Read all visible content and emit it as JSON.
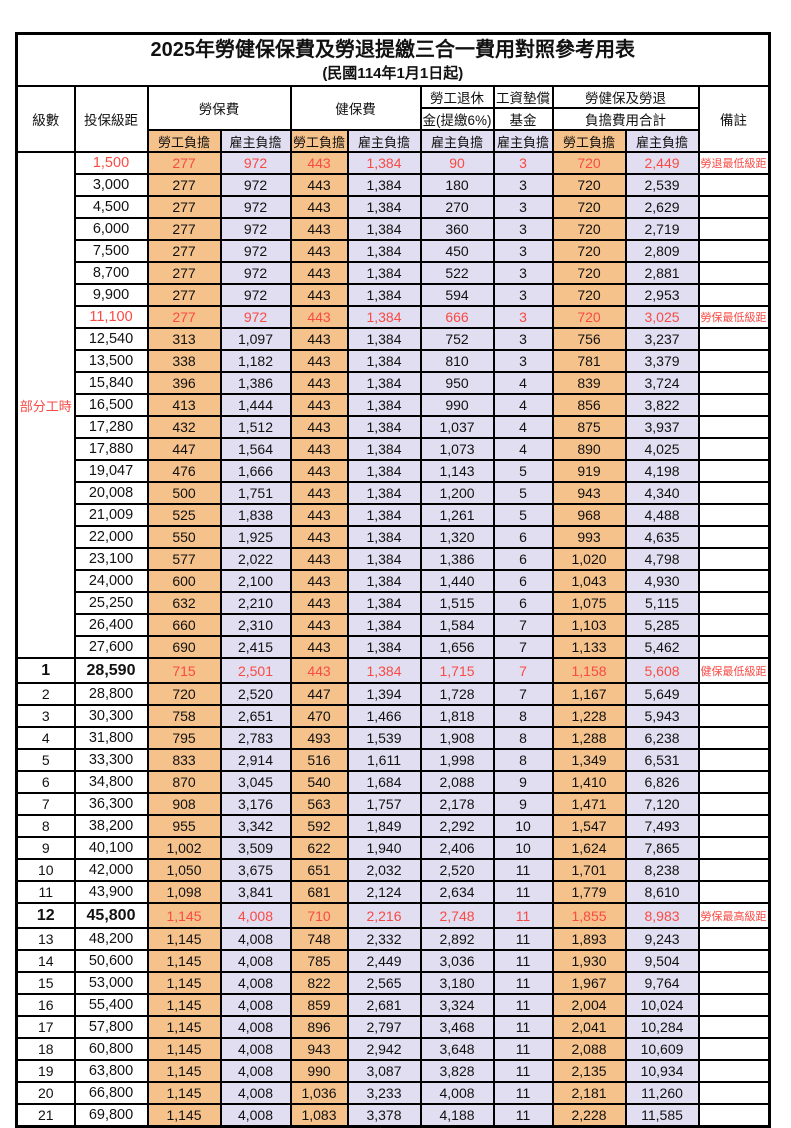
{
  "title": "2025年勞健保保費及勞退提繳三合一費用對照參考用表",
  "subtitle": "(民國114年1月1日起)",
  "columns": {
    "level": "級數",
    "bracket": "投保級距",
    "labor_ins": "勞保費",
    "health_ins": "健保費",
    "pension_l1": "勞工退休",
    "pension_l2": "金(提繳6%)",
    "wage_fund_l1": "工資墊償",
    "wage_fund_l2": "基金",
    "total_l1": "勞健保及勞退",
    "total_l2": "負擔費用合計",
    "employee": "勞工負擔",
    "employer": "雇主負擔",
    "remark": "備註"
  },
  "part_time_label": "部分工時",
  "colors": {
    "employee_bg": "#F6C28B",
    "employer_bg": "#E0DEF0",
    "highlight_red": "#F94A44",
    "grid": "#000000"
  },
  "rows": [
    {
      "level": "",
      "bracket": "1,500",
      "cells": [
        "277",
        "972",
        "443",
        "1,384",
        "90",
        "3",
        "720",
        "2,449"
      ],
      "remark": "勞退最低級距",
      "red": true,
      "bold": false
    },
    {
      "level": "",
      "bracket": "3,000",
      "cells": [
        "277",
        "972",
        "443",
        "1,384",
        "180",
        "3",
        "720",
        "2,539"
      ],
      "remark": "",
      "red": false,
      "bold": false
    },
    {
      "level": "",
      "bracket": "4,500",
      "cells": [
        "277",
        "972",
        "443",
        "1,384",
        "270",
        "3",
        "720",
        "2,629"
      ],
      "remark": "",
      "red": false,
      "bold": false
    },
    {
      "level": "",
      "bracket": "6,000",
      "cells": [
        "277",
        "972",
        "443",
        "1,384",
        "360",
        "3",
        "720",
        "2,719"
      ],
      "remark": "",
      "red": false,
      "bold": false
    },
    {
      "level": "",
      "bracket": "7,500",
      "cells": [
        "277",
        "972",
        "443",
        "1,384",
        "450",
        "3",
        "720",
        "2,809"
      ],
      "remark": "",
      "red": false,
      "bold": false
    },
    {
      "level": "",
      "bracket": "8,700",
      "cells": [
        "277",
        "972",
        "443",
        "1,384",
        "522",
        "3",
        "720",
        "2,881"
      ],
      "remark": "",
      "red": false,
      "bold": false
    },
    {
      "level": "",
      "bracket": "9,900",
      "cells": [
        "277",
        "972",
        "443",
        "1,384",
        "594",
        "3",
        "720",
        "2,953"
      ],
      "remark": "",
      "red": false,
      "bold": false
    },
    {
      "level": "",
      "bracket": "11,100",
      "cells": [
        "277",
        "972",
        "443",
        "1,384",
        "666",
        "3",
        "720",
        "3,025"
      ],
      "remark": "勞保最低級距",
      "red": true,
      "bold": false
    },
    {
      "level": "",
      "bracket": "12,540",
      "cells": [
        "313",
        "1,097",
        "443",
        "1,384",
        "752",
        "3",
        "756",
        "3,237"
      ],
      "remark": "",
      "red": false,
      "bold": false
    },
    {
      "level": "",
      "bracket": "13,500",
      "cells": [
        "338",
        "1,182",
        "443",
        "1,384",
        "810",
        "3",
        "781",
        "3,379"
      ],
      "remark": "",
      "red": false,
      "bold": false
    },
    {
      "level": "",
      "bracket": "15,840",
      "cells": [
        "396",
        "1,386",
        "443",
        "1,384",
        "950",
        "4",
        "839",
        "3,724"
      ],
      "remark": "",
      "red": false,
      "bold": false
    },
    {
      "level": "",
      "bracket": "16,500",
      "cells": [
        "413",
        "1,444",
        "443",
        "1,384",
        "990",
        "4",
        "856",
        "3,822"
      ],
      "remark": "",
      "red": false,
      "bold": false
    },
    {
      "level": "",
      "bracket": "17,280",
      "cells": [
        "432",
        "1,512",
        "443",
        "1,384",
        "1,037",
        "4",
        "875",
        "3,937"
      ],
      "remark": "",
      "red": false,
      "bold": false
    },
    {
      "level": "",
      "bracket": "17,880",
      "cells": [
        "447",
        "1,564",
        "443",
        "1,384",
        "1,073",
        "4",
        "890",
        "4,025"
      ],
      "remark": "",
      "red": false,
      "bold": false
    },
    {
      "level": "",
      "bracket": "19,047",
      "cells": [
        "476",
        "1,666",
        "443",
        "1,384",
        "1,143",
        "5",
        "919",
        "4,198"
      ],
      "remark": "",
      "red": false,
      "bold": false
    },
    {
      "level": "",
      "bracket": "20,008",
      "cells": [
        "500",
        "1,751",
        "443",
        "1,384",
        "1,200",
        "5",
        "943",
        "4,340"
      ],
      "remark": "",
      "red": false,
      "bold": false
    },
    {
      "level": "",
      "bracket": "21,009",
      "cells": [
        "525",
        "1,838",
        "443",
        "1,384",
        "1,261",
        "5",
        "968",
        "4,488"
      ],
      "remark": "",
      "red": false,
      "bold": false
    },
    {
      "level": "",
      "bracket": "22,000",
      "cells": [
        "550",
        "1,925",
        "443",
        "1,384",
        "1,320",
        "6",
        "993",
        "4,635"
      ],
      "remark": "",
      "red": false,
      "bold": false
    },
    {
      "level": "",
      "bracket": "23,100",
      "cells": [
        "577",
        "2,022",
        "443",
        "1,384",
        "1,386",
        "6",
        "1,020",
        "4,798"
      ],
      "remark": "",
      "red": false,
      "bold": false
    },
    {
      "level": "",
      "bracket": "24,000",
      "cells": [
        "600",
        "2,100",
        "443",
        "1,384",
        "1,440",
        "6",
        "1,043",
        "4,930"
      ],
      "remark": "",
      "red": false,
      "bold": false
    },
    {
      "level": "",
      "bracket": "25,250",
      "cells": [
        "632",
        "2,210",
        "443",
        "1,384",
        "1,515",
        "6",
        "1,075",
        "5,115"
      ],
      "remark": "",
      "red": false,
      "bold": false
    },
    {
      "level": "",
      "bracket": "26,400",
      "cells": [
        "660",
        "2,310",
        "443",
        "1,384",
        "1,584",
        "7",
        "1,103",
        "5,285"
      ],
      "remark": "",
      "red": false,
      "bold": false
    },
    {
      "level": "",
      "bracket": "27,600",
      "cells": [
        "690",
        "2,415",
        "443",
        "1,384",
        "1,656",
        "7",
        "1,133",
        "5,462"
      ],
      "remark": "",
      "red": false,
      "bold": false
    },
    {
      "level": "1",
      "bracket": "28,590",
      "cells": [
        "715",
        "2,501",
        "443",
        "1,384",
        "1,715",
        "7",
        "1,158",
        "5,608"
      ],
      "remark": "健保最低級距",
      "red": true,
      "bold": true
    },
    {
      "level": "2",
      "bracket": "28,800",
      "cells": [
        "720",
        "2,520",
        "447",
        "1,394",
        "1,728",
        "7",
        "1,167",
        "5,649"
      ],
      "remark": "",
      "red": false,
      "bold": false
    },
    {
      "level": "3",
      "bracket": "30,300",
      "cells": [
        "758",
        "2,651",
        "470",
        "1,466",
        "1,818",
        "8",
        "1,228",
        "5,943"
      ],
      "remark": "",
      "red": false,
      "bold": false
    },
    {
      "level": "4",
      "bracket": "31,800",
      "cells": [
        "795",
        "2,783",
        "493",
        "1,539",
        "1,908",
        "8",
        "1,288",
        "6,238"
      ],
      "remark": "",
      "red": false,
      "bold": false
    },
    {
      "level": "5",
      "bracket": "33,300",
      "cells": [
        "833",
        "2,914",
        "516",
        "1,611",
        "1,998",
        "8",
        "1,349",
        "6,531"
      ],
      "remark": "",
      "red": false,
      "bold": false
    },
    {
      "level": "6",
      "bracket": "34,800",
      "cells": [
        "870",
        "3,045",
        "540",
        "1,684",
        "2,088",
        "9",
        "1,410",
        "6,826"
      ],
      "remark": "",
      "red": false,
      "bold": false
    },
    {
      "level": "7",
      "bracket": "36,300",
      "cells": [
        "908",
        "3,176",
        "563",
        "1,757",
        "2,178",
        "9",
        "1,471",
        "7,120"
      ],
      "remark": "",
      "red": false,
      "bold": false
    },
    {
      "level": "8",
      "bracket": "38,200",
      "cells": [
        "955",
        "3,342",
        "592",
        "1,849",
        "2,292",
        "10",
        "1,547",
        "7,493"
      ],
      "remark": "",
      "red": false,
      "bold": false
    },
    {
      "level": "9",
      "bracket": "40,100",
      "cells": [
        "1,002",
        "3,509",
        "622",
        "1,940",
        "2,406",
        "10",
        "1,624",
        "7,865"
      ],
      "remark": "",
      "red": false,
      "bold": false
    },
    {
      "level": "10",
      "bracket": "42,000",
      "cells": [
        "1,050",
        "3,675",
        "651",
        "2,032",
        "2,520",
        "11",
        "1,701",
        "8,238"
      ],
      "remark": "",
      "red": false,
      "bold": false
    },
    {
      "level": "11",
      "bracket": "43,900",
      "cells": [
        "1,098",
        "3,841",
        "681",
        "2,124",
        "2,634",
        "11",
        "1,779",
        "8,610"
      ],
      "remark": "",
      "red": false,
      "bold": false
    },
    {
      "level": "12",
      "bracket": "45,800",
      "cells": [
        "1,145",
        "4,008",
        "710",
        "2,216",
        "2,748",
        "11",
        "1,855",
        "8,983"
      ],
      "remark": "勞保最高級距",
      "red": true,
      "bold": true
    },
    {
      "level": "13",
      "bracket": "48,200",
      "cells": [
        "1,145",
        "4,008",
        "748",
        "2,332",
        "2,892",
        "11",
        "1,893",
        "9,243"
      ],
      "remark": "",
      "red": false,
      "bold": false
    },
    {
      "level": "14",
      "bracket": "50,600",
      "cells": [
        "1,145",
        "4,008",
        "785",
        "2,449",
        "3,036",
        "11",
        "1,930",
        "9,504"
      ],
      "remark": "",
      "red": false,
      "bold": false
    },
    {
      "level": "15",
      "bracket": "53,000",
      "cells": [
        "1,145",
        "4,008",
        "822",
        "2,565",
        "3,180",
        "11",
        "1,967",
        "9,764"
      ],
      "remark": "",
      "red": false,
      "bold": false
    },
    {
      "level": "16",
      "bracket": "55,400",
      "cells": [
        "1,145",
        "4,008",
        "859",
        "2,681",
        "3,324",
        "11",
        "2,004",
        "10,024"
      ],
      "remark": "",
      "red": false,
      "bold": false
    },
    {
      "level": "17",
      "bracket": "57,800",
      "cells": [
        "1,145",
        "4,008",
        "896",
        "2,797",
        "3,468",
        "11",
        "2,041",
        "10,284"
      ],
      "remark": "",
      "red": false,
      "bold": false
    },
    {
      "level": "18",
      "bracket": "60,800",
      "cells": [
        "1,145",
        "4,008",
        "943",
        "2,942",
        "3,648",
        "11",
        "2,088",
        "10,609"
      ],
      "remark": "",
      "red": false,
      "bold": false
    },
    {
      "level": "19",
      "bracket": "63,800",
      "cells": [
        "1,145",
        "4,008",
        "990",
        "3,087",
        "3,828",
        "11",
        "2,135",
        "10,934"
      ],
      "remark": "",
      "red": false,
      "bold": false
    },
    {
      "level": "20",
      "bracket": "66,800",
      "cells": [
        "1,145",
        "4,008",
        "1,036",
        "3,233",
        "4,008",
        "11",
        "2,181",
        "11,260"
      ],
      "remark": "",
      "red": false,
      "bold": false
    },
    {
      "level": "21",
      "bracket": "69,800",
      "cells": [
        "1,145",
        "4,008",
        "1,083",
        "3,378",
        "4,188",
        "11",
        "2,228",
        "11,585"
      ],
      "remark": "",
      "red": false,
      "bold": false
    }
  ]
}
